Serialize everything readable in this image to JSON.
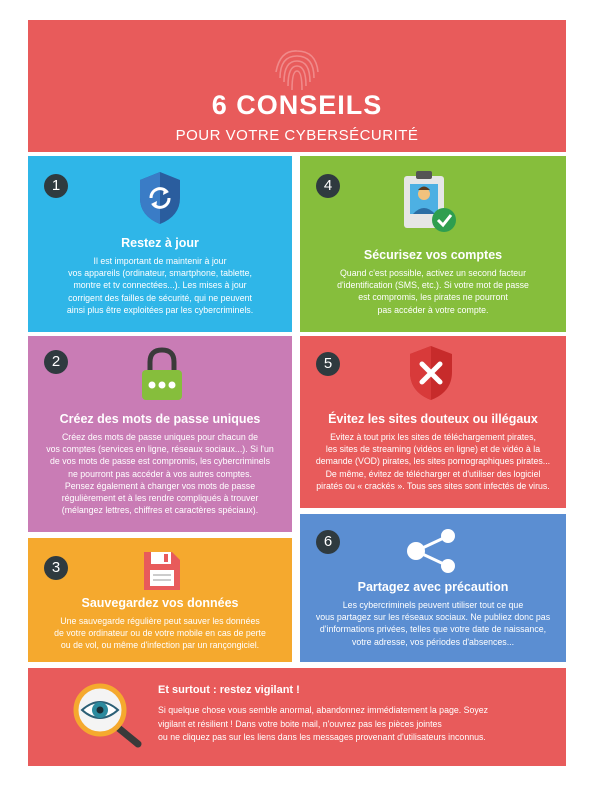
{
  "header": {
    "title": "6 CONSEILS",
    "subtitle": "POUR VOTRE CYBERSÉCURITÉ"
  },
  "tips": [
    {
      "number": "1",
      "title": "Restez à jour",
      "lines": [
        "Il est important de maintenir à jour",
        "vos appareils (ordinateur, smartphone, tablette,",
        "montre et tv connectées...). Les mises à jour",
        "corrigent des failles de sécurité, qui ne peuvent",
        "ainsi plus être exploitées par les cybercriminels."
      ]
    },
    {
      "number": "2",
      "title": "Créez des mots de passe uniques",
      "lines": [
        "Créez des mots de passe uniques pour chacun de",
        "vos comptes (services en ligne, réseaux sociaux...). Si l'un",
        "de vos mots de passe est compromis, les cybercriminels",
        "ne pourront pas accéder à vos autres comptes.",
        "Pensez également à changer vos mots de passe",
        "régulièrement et à les rendre compliqués à trouver",
        "(mélangez lettres, chiffres et caractères spéciaux)."
      ]
    },
    {
      "number": "3",
      "title": "Sauvegardez vos données",
      "lines": [
        "Une sauvegarde régulière peut sauver les données",
        "de votre ordinateur ou de votre mobile en cas de perte",
        "ou de vol, ou même d'infection par un rançongiciel."
      ]
    },
    {
      "number": "4",
      "title": "Sécurisez vos comptes",
      "lines": [
        "Quand c'est possible, activez un second facteur",
        "d'identification (SMS, etc.). Si votre mot de passe",
        "est compromis, les pirates ne pourront",
        "pas accéder à votre compte."
      ]
    },
    {
      "number": "5",
      "title": "Évitez les sites douteux ou illégaux",
      "lines": [
        "Evitez à tout prix les sites de téléchargement pirates,",
        "les sites de streaming (vidéos en ligne) et de vidéo à la",
        "demande (VOD) pirates, les sites pornographiques pirates...",
        "De même, évitez de télécharger et d'utiliser des logiciel",
        "piratés ou « crackés ». Tous ses sites sont infectés de virus."
      ]
    },
    {
      "number": "6",
      "title": "Partagez avec précaution",
      "lines": [
        "Les cybercriminels peuvent utiliser tout ce que",
        "vous partagez sur les réseaux sociaux. Ne publiez donc pas",
        "d'informations privées, telles que votre date de naissance,",
        "votre adresse, vos périodes d'absences..."
      ]
    }
  ],
  "footer": {
    "title": "Et surtout : restez vigilant !",
    "lines": [
      "Si quelque chose vous semble anormal, abandonnez immédiatement la page. Soyez",
      "vigilant et résilient ! Dans votre boite mail, n'ouvrez pas les pièces jointes",
      "ou ne cliquez pas sur les liens dans les messages provenant d'utilisateurs inconnus."
    ]
  },
  "colors": {
    "red": "#e85b5b",
    "blue": "#2fb6e8",
    "green": "#86be3c",
    "purple": "#c97cb5",
    "orange": "#f5a92e",
    "steel_blue": "#5b8ed2"
  },
  "icons": [
    "fingerprint-icon",
    "shield-refresh-icon",
    "padlock-icon",
    "floppy-disk-icon",
    "id-badge-check-icon",
    "shield-cross-icon",
    "share-icon",
    "magnifier-eye-icon"
  ]
}
